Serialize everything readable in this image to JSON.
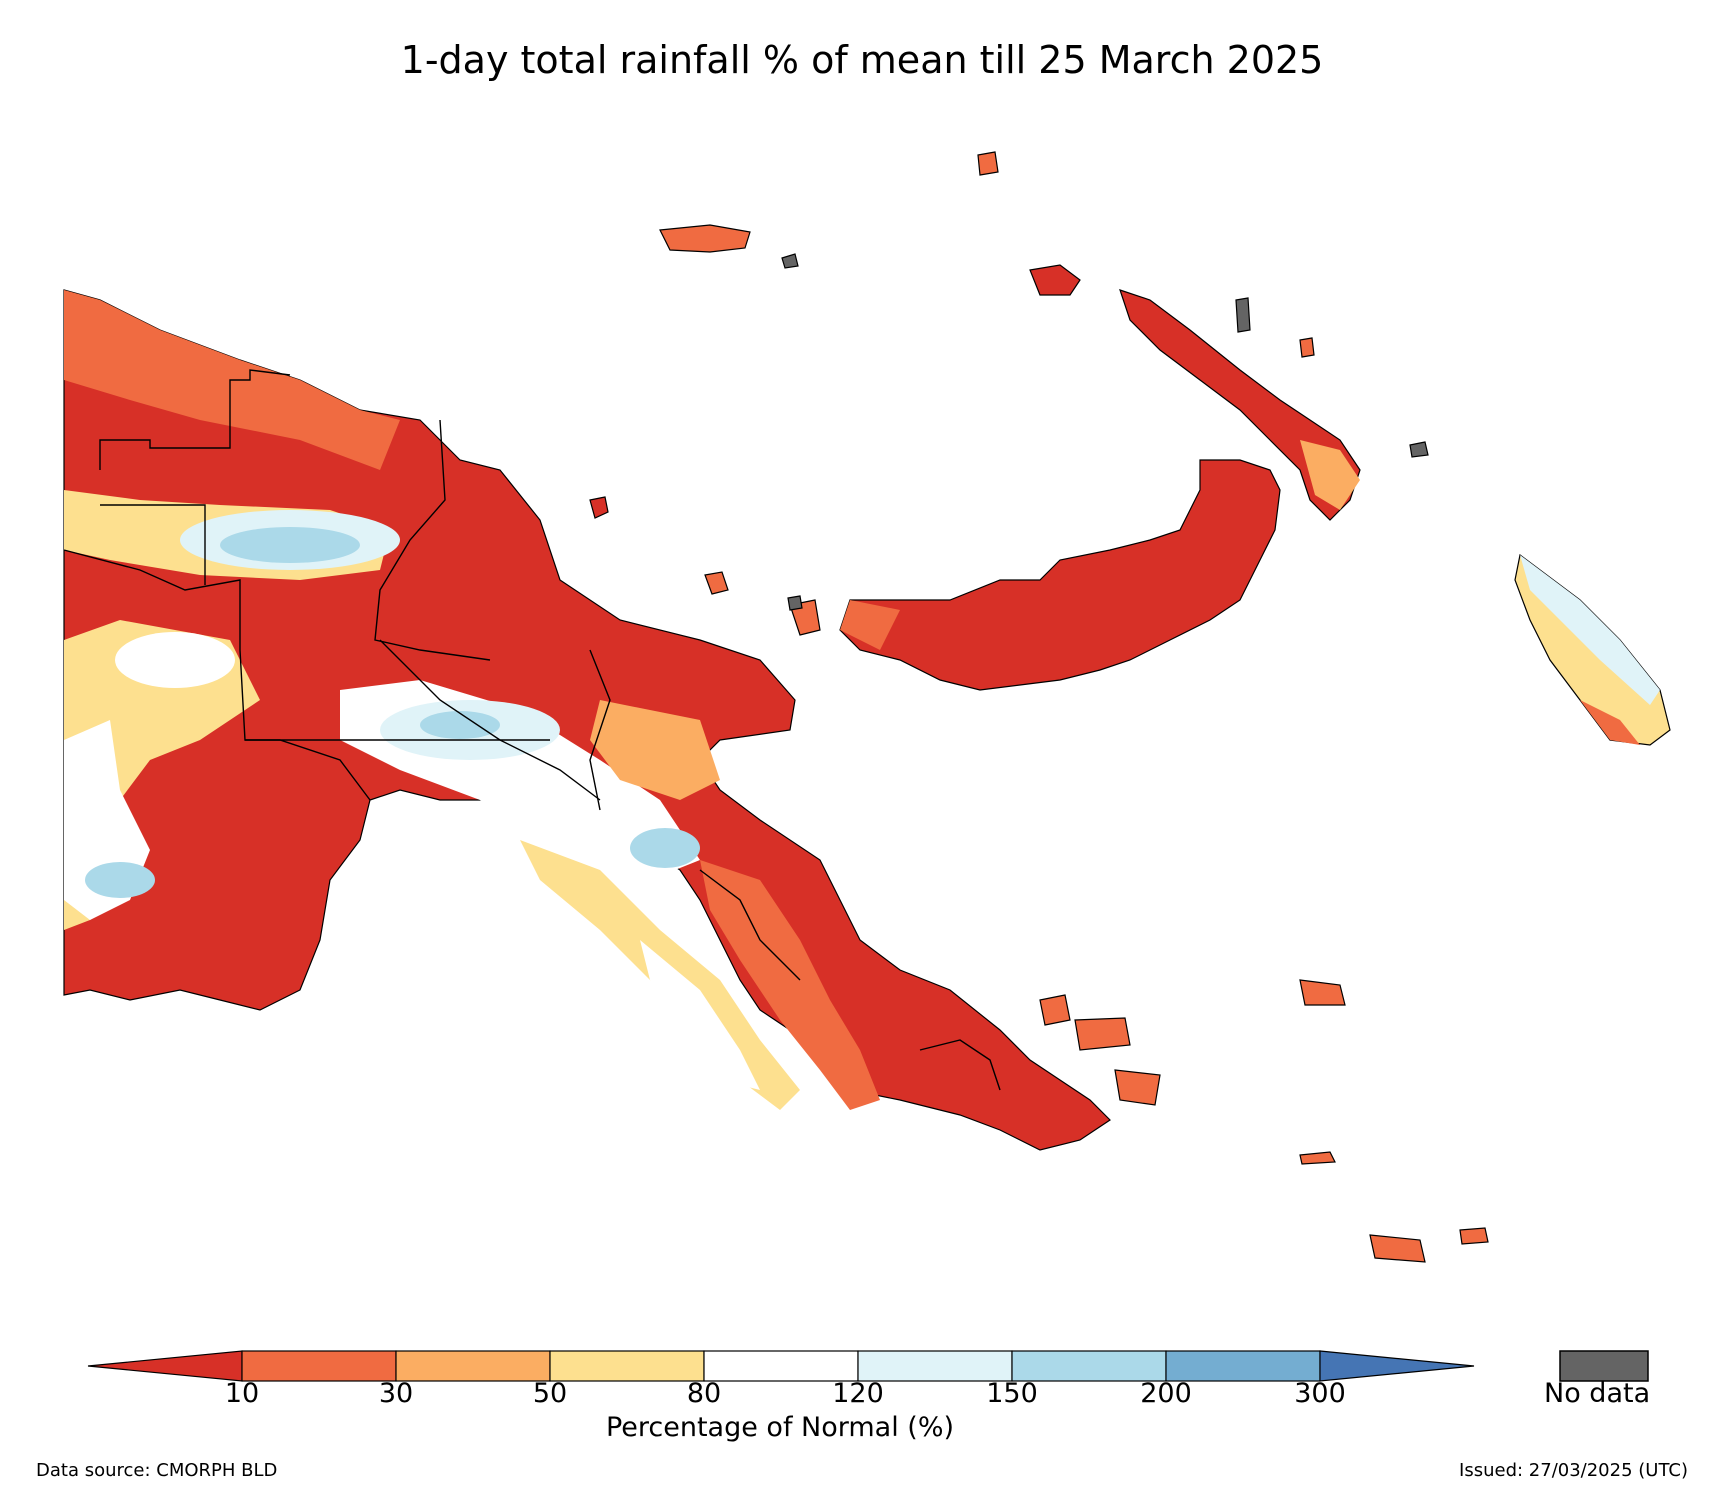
{
  "title": "1-day total rainfall % of mean till 25 March 2025",
  "colorbar": {
    "label": "Percentage of Normal (%)",
    "ticks": [
      "10",
      "30",
      "50",
      "80",
      "120",
      "150",
      "200",
      "300"
    ],
    "colors": [
      "#d73027",
      "#f06b41",
      "#fbad62",
      "#fde08f",
      "#ffffff",
      "#e0f3f8",
      "#abd9e9",
      "#74add1",
      "#4575b4"
    ],
    "no_data_label": "No data",
    "no_data_color": "#646464"
  },
  "footer": {
    "source": "Data source: CMORPH BLD",
    "issued": "Issued: 27/03/2025 (UTC)"
  }
}
